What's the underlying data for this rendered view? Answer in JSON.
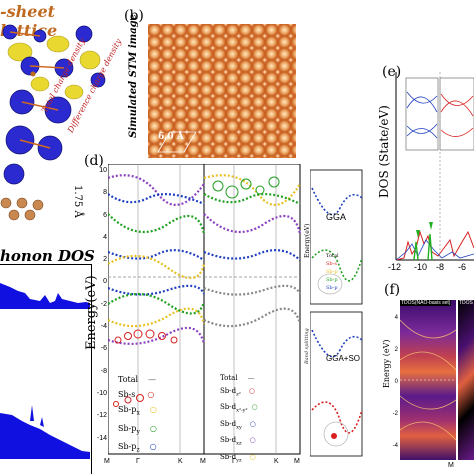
{
  "panel_a": {
    "title": "-sheet lattice",
    "total_charge_label": "Total charge density",
    "diff_charge_label": "Difference charge density",
    "height_label": "1.75 Å"
  },
  "panel_b": {
    "label": "(b)",
    "stm_label": "Simulated STM image",
    "spacing_label": "6.0 Å"
  },
  "phonon": {
    "title": "honon DOS"
  },
  "panel_d": {
    "label": "(d)",
    "ylabel": "Energy(eV)",
    "yticks": [
      "10",
      "8",
      "6",
      "4",
      "2",
      "0",
      "-2",
      "-4",
      "-6",
      "-8",
      "-10",
      "-12",
      "-14"
    ],
    "xticks_left": [
      "M",
      "Γ",
      "K",
      "M"
    ],
    "xticks_right": [
      "Γ",
      "K",
      "M"
    ],
    "legend_left": [
      "Total",
      "Sb-s",
      "Sb-p",
      "Sb-p",
      "Sb-p"
    ],
    "legend_left_sub": [
      "",
      "",
      "x",
      "y",
      "z"
    ],
    "legend_right": [
      "Total",
      "Sb-d",
      "Sb-d",
      "Sb-d",
      "Sb-d",
      "Sb-d"
    ],
    "legend_right_sub": [
      "",
      "z²",
      "x²-y²",
      "xy",
      "xz",
      "yz"
    ],
    "legend_colors": [
      "#555555",
      "#d82020",
      "#e8c020",
      "#20a020",
      "#2040c0",
      "#8a40c0"
    ]
  },
  "panel_side": {
    "gga_label": "GGA",
    "gga_so_label": "GGA+SO",
    "energy_label": "Energy(eV)",
    "band_split_label": "Band splitting",
    "legend": [
      "Total",
      "Sb-s",
      "Sb-p",
      "Sb-p",
      "Sb-p"
    ]
  },
  "panel_e": {
    "label": "(e)",
    "ylabel": "DOS (State/eV)",
    "xticks": [
      "-12",
      "-10",
      "-8",
      "-6"
    ]
  },
  "panel_f": {
    "label": "(f)",
    "ylabel": "Energy (eV)",
    "title_left": "TDOS(NAO-basis set)",
    "title_right": "TDOS",
    "yticks": [
      "4",
      "2",
      "0",
      "-2",
      "-4"
    ],
    "xtick": "M"
  }
}
